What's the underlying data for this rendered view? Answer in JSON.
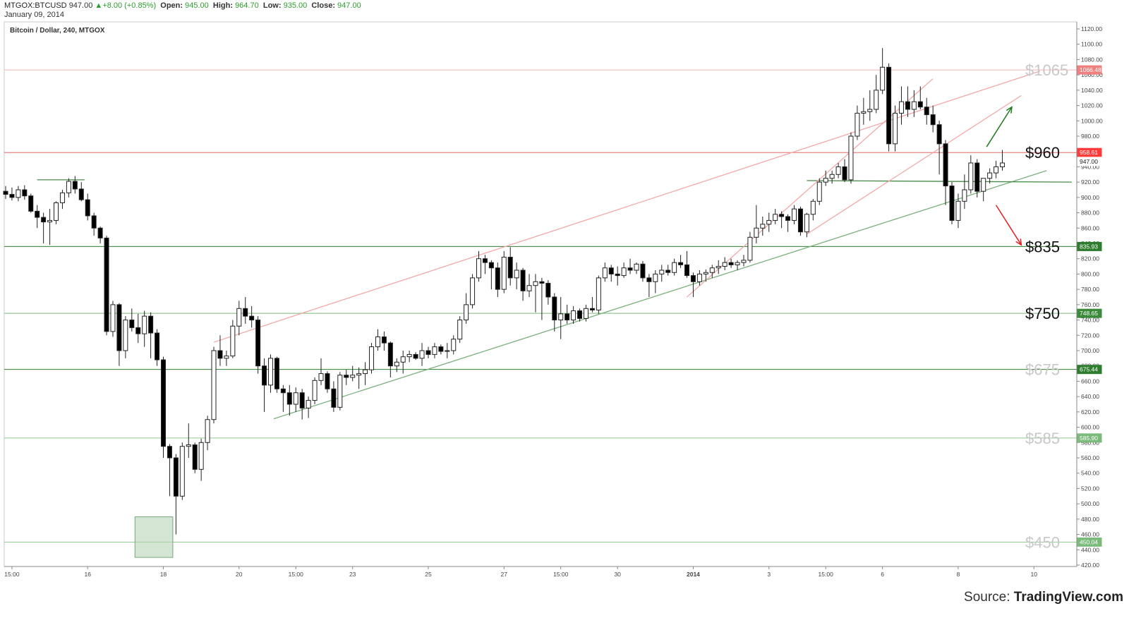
{
  "header": {
    "symbol": "MTGOX:BTCUSD",
    "last": "947.00",
    "change": "+8.00 (+0.85%)",
    "open_label": "Open:",
    "open": "945.00",
    "high_label": "High:",
    "high": "964.70",
    "low_label": "Low:",
    "low": "935.00",
    "close_label": "Close:",
    "close": "947.00",
    "date": "January 09, 2014"
  },
  "source": {
    "prefix": "Source: ",
    "brand": "TradingView.com"
  },
  "chart_data": {
    "type": "candlestick",
    "title": "Bitcoin / Dollar, 240, MTGOX",
    "ylim": [
      420,
      1120
    ],
    "y_ticks": [
      420,
      440,
      460,
      480,
      500,
      520,
      540,
      560,
      580,
      600,
      620,
      640,
      660,
      680,
      700,
      720,
      740,
      760,
      780,
      800,
      820,
      840,
      860,
      880,
      900,
      920,
      940,
      960,
      980,
      1000,
      1020,
      1040,
      1060,
      1080,
      1100,
      1120
    ],
    "x_tick_labels": [
      {
        "idx": 1,
        "label": "15:00"
      },
      {
        "idx": 13,
        "label": "16"
      },
      {
        "idx": 25,
        "label": "18"
      },
      {
        "idx": 37,
        "label": "20"
      },
      {
        "idx": 46,
        "label": "15:00"
      },
      {
        "idx": 55,
        "label": "23"
      },
      {
        "idx": 67,
        "label": "25"
      },
      {
        "idx": 79,
        "label": "27"
      },
      {
        "idx": 88,
        "label": "15:00"
      },
      {
        "idx": 97,
        "label": "30"
      },
      {
        "idx": 109,
        "label": "2014"
      },
      {
        "idx": 121,
        "label": "3"
      },
      {
        "idx": 130,
        "label": "15:00"
      },
      {
        "idx": 139,
        "label": "6"
      },
      {
        "idx": 151,
        "label": "8"
      },
      {
        "idx": 163,
        "label": "10"
      }
    ],
    "horizontal_levels": [
      {
        "price": 1066.48,
        "label": "1066.48",
        "color": "#f2b3b3",
        "tag": "#f08080",
        "annotation": "$1065",
        "ann_color": "#c8c8c8"
      },
      {
        "price": 958.61,
        "label": "958.61",
        "color": "#e86a6a",
        "tag": "#ff3b3b",
        "annotation": "$960",
        "ann_color": "#111111"
      },
      {
        "price": 835.93,
        "label": "835.93",
        "color": "#2e7d2e",
        "tag": "#2e7d2e",
        "annotation": "$835",
        "ann_color": "#111111"
      },
      {
        "price": 748.65,
        "label": "748.65",
        "color": "#7cb87c",
        "tag": "#3a8a3a",
        "annotation": "$750",
        "ann_color": "#111111"
      },
      {
        "price": 675.44,
        "label": "675.44",
        "color": "#2e7d2e",
        "tag": "#2e7d2e",
        "annotation": "$675",
        "ann_color": "#c8c8c8"
      },
      {
        "price": 585.9,
        "label": "585.90",
        "color": "#8fc98f",
        "tag": "#7aba7a",
        "annotation": "$585",
        "ann_color": "#c8c8c8"
      },
      {
        "price": 450.04,
        "label": "450.04",
        "color": "#8fc98f",
        "tag": "#7aba7a",
        "annotation": "$450",
        "ann_color": "#c8c8c8"
      }
    ],
    "last_price": {
      "price": 947.0,
      "label": "947.00"
    },
    "trendlines": [
      {
        "from": [
          42.5,
          611
        ],
        "to": [
          165,
          935
        ],
        "color": "#7ab07a"
      },
      {
        "from": [
          127,
          922
        ],
        "to": [
          169,
          920
        ],
        "color": "#4a8a4a"
      },
      {
        "from": [
          5,
          923
        ],
        "to": [
          12.5,
          923
        ],
        "color": "#4a8a4a"
      },
      {
        "from": [
          33,
          711
        ],
        "to": [
          164,
          1065
        ],
        "color": "#f2a8a8"
      },
      {
        "from": [
          108,
          770
        ],
        "to": [
          147,
          1055
        ],
        "color": "#f2a8a8"
      },
      {
        "from": [
          127,
          852
        ],
        "to": [
          161,
          1033
        ],
        "color": "#f2a8a8"
      }
    ],
    "arrows": [
      {
        "from": [
          155.5,
          966
        ],
        "to": [
          159.5,
          1018
        ],
        "color": "#1e7a1e"
      },
      {
        "from": [
          157,
          890
        ],
        "to": [
          161,
          838
        ],
        "color": "#e02020"
      }
    ],
    "highlight_box": {
      "x0": 20.5,
      "x1": 26.5,
      "y0": 430,
      "y1": 483
    },
    "candles": [
      [
        908,
        915,
        898,
        904
      ],
      [
        904,
        913,
        896,
        900
      ],
      [
        900,
        915,
        895,
        910
      ],
      [
        910,
        916,
        897,
        902
      ],
      [
        902,
        905,
        880,
        882
      ],
      [
        882,
        890,
        860,
        874
      ],
      [
        874,
        880,
        840,
        868
      ],
      [
        868,
        885,
        838,
        870
      ],
      [
        870,
        895,
        865,
        893
      ],
      [
        893,
        910,
        885,
        906
      ],
      [
        906,
        925,
        900,
        921
      ],
      [
        921,
        928,
        905,
        911
      ],
      [
        911,
        920,
        895,
        897
      ],
      [
        897,
        905,
        870,
        876
      ],
      [
        876,
        880,
        850,
        860
      ],
      [
        860,
        862,
        840,
        847
      ],
      [
        847,
        850,
        720,
        725
      ],
      [
        725,
        765,
        718,
        760
      ],
      [
        760,
        762,
        680,
        700
      ],
      [
        700,
        745,
        690,
        740
      ],
      [
        740,
        755,
        725,
        730
      ],
      [
        730,
        748,
        710,
        722
      ],
      [
        722,
        752,
        705,
        745
      ],
      [
        745,
        750,
        690,
        723
      ],
      [
        723,
        728,
        680,
        688
      ],
      [
        688,
        692,
        560,
        575
      ],
      [
        575,
        578,
        510,
        560
      ],
      [
        560,
        565,
        460,
        510
      ],
      [
        510,
        580,
        505,
        575
      ],
      [
        575,
        605,
        560,
        577
      ],
      [
        577,
        580,
        540,
        545
      ],
      [
        545,
        585,
        530,
        580
      ],
      [
        580,
        615,
        570,
        610
      ],
      [
        610,
        705,
        605,
        700
      ],
      [
        700,
        720,
        680,
        690
      ],
      [
        690,
        700,
        680,
        693
      ],
      [
        693,
        740,
        690,
        732
      ],
      [
        732,
        765,
        720,
        755
      ],
      [
        755,
        770,
        735,
        745
      ],
      [
        745,
        758,
        730,
        740
      ],
      [
        740,
        745,
        670,
        680
      ],
      [
        680,
        690,
        620,
        655
      ],
      [
        655,
        695,
        645,
        690
      ],
      [
        690,
        692,
        645,
        650
      ],
      [
        650,
        655,
        620,
        645
      ],
      [
        645,
        655,
        615,
        630
      ],
      [
        630,
        652,
        620,
        645
      ],
      [
        645,
        650,
        610,
        625
      ],
      [
        625,
        640,
        612,
        635
      ],
      [
        635,
        665,
        630,
        661
      ],
      [
        661,
        690,
        655,
        670
      ],
      [
        670,
        673,
        645,
        650
      ],
      [
        650,
        660,
        620,
        626
      ],
      [
        626,
        672,
        622,
        668
      ],
      [
        668,
        675,
        655,
        665
      ],
      [
        665,
        680,
        660,
        668
      ],
      [
        668,
        678,
        650,
        670
      ],
      [
        670,
        685,
        655,
        675
      ],
      [
        675,
        710,
        670,
        705
      ],
      [
        705,
        728,
        700,
        718
      ],
      [
        718,
        725,
        700,
        710
      ],
      [
        710,
        712,
        665,
        680
      ],
      [
        680,
        690,
        672,
        685
      ],
      [
        685,
        700,
        670,
        692
      ],
      [
        692,
        700,
        685,
        695
      ],
      [
        695,
        698,
        688,
        690
      ],
      [
        690,
        710,
        680,
        700
      ],
      [
        700,
        705,
        690,
        695
      ],
      [
        695,
        710,
        690,
        705
      ],
      [
        705,
        708,
        695,
        699
      ],
      [
        699,
        710,
        690,
        700
      ],
      [
        700,
        720,
        695,
        715
      ],
      [
        715,
        745,
        710,
        740
      ],
      [
        740,
        775,
        735,
        760
      ],
      [
        760,
        800,
        755,
        795
      ],
      [
        795,
        830,
        790,
        820
      ],
      [
        820,
        825,
        800,
        815
      ],
      [
        815,
        818,
        780,
        808
      ],
      [
        808,
        815,
        770,
        780
      ],
      [
        780,
        830,
        775,
        822
      ],
      [
        822,
        835,
        785,
        795
      ],
      [
        795,
        815,
        780,
        805
      ],
      [
        805,
        808,
        765,
        778
      ],
      [
        778,
        800,
        770,
        785
      ],
      [
        785,
        800,
        750,
        790
      ],
      [
        790,
        795,
        740,
        788
      ],
      [
        788,
        792,
        760,
        770
      ],
      [
        770,
        775,
        725,
        740
      ],
      [
        740,
        770,
        715,
        748
      ],
      [
        748,
        760,
        735,
        740
      ],
      [
        740,
        758,
        735,
        752
      ],
      [
        752,
        755,
        738,
        742
      ],
      [
        742,
        760,
        738,
        755
      ],
      [
        755,
        770,
        750,
        753
      ],
      [
        753,
        798,
        748,
        795
      ],
      [
        795,
        815,
        790,
        808
      ],
      [
        808,
        812,
        790,
        800
      ],
      [
        800,
        810,
        785,
        798
      ],
      [
        798,
        815,
        795,
        808
      ],
      [
        808,
        820,
        800,
        805
      ],
      [
        805,
        815,
        800,
        813
      ],
      [
        813,
        817,
        790,
        795
      ],
      [
        795,
        800,
        770,
        790
      ],
      [
        790,
        805,
        775,
        800
      ],
      [
        800,
        812,
        790,
        805
      ],
      [
        805,
        812,
        798,
        802
      ],
      [
        802,
        820,
        798,
        815
      ],
      [
        815,
        825,
        808,
        812
      ],
      [
        812,
        830,
        795,
        798
      ],
      [
        798,
        802,
        770,
        790
      ],
      [
        790,
        805,
        785,
        800
      ],
      [
        800,
        806,
        790,
        802
      ],
      [
        802,
        812,
        795,
        808
      ],
      [
        808,
        818,
        800,
        810
      ],
      [
        810,
        822,
        805,
        815
      ],
      [
        815,
        820,
        808,
        812
      ],
      [
        812,
        818,
        805,
        815
      ],
      [
        815,
        825,
        810,
        818
      ],
      [
        818,
        855,
        815,
        848
      ],
      [
        848,
        890,
        840,
        860
      ],
      [
        860,
        875,
        850,
        865
      ],
      [
        865,
        880,
        855,
        870
      ],
      [
        870,
        885,
        865,
        878
      ],
      [
        878,
        882,
        860,
        875
      ],
      [
        875,
        878,
        855,
        870
      ],
      [
        870,
        890,
        865,
        885
      ],
      [
        885,
        888,
        850,
        855
      ],
      [
        855,
        880,
        848,
        878
      ],
      [
        878,
        898,
        870,
        895
      ],
      [
        895,
        925,
        890,
        920
      ],
      [
        920,
        935,
        915,
        925
      ],
      [
        925,
        935,
        918,
        930
      ],
      [
        930,
        945,
        925,
        940
      ],
      [
        940,
        950,
        920,
        923
      ],
      [
        923,
        985,
        918,
        980
      ],
      [
        980,
        1020,
        975,
        1010
      ],
      [
        1010,
        1030,
        995,
        1012
      ],
      [
        1012,
        1040,
        1000,
        1015
      ],
      [
        1015,
        1060,
        1010,
        1040
      ],
      [
        1040,
        1095,
        1035,
        1070
      ],
      [
        1070,
        1075,
        960,
        970
      ],
      [
        970,
        1020,
        960,
        1010
      ],
      [
        1010,
        1045,
        995,
        1025
      ],
      [
        1025,
        1045,
        1005,
        1015
      ],
      [
        1015,
        1040,
        1005,
        1025
      ],
      [
        1025,
        1045,
        1015,
        1018
      ],
      [
        1018,
        1030,
        995,
        1008
      ],
      [
        1008,
        1020,
        985,
        995
      ],
      [
        995,
        1000,
        930,
        970
      ],
      [
        970,
        975,
        890,
        915
      ],
      [
        915,
        920,
        865,
        870
      ],
      [
        870,
        905,
        860,
        895
      ],
      [
        895,
        930,
        885,
        910
      ],
      [
        910,
        955,
        905,
        945
      ],
      [
        945,
        950,
        900,
        908
      ],
      [
        908,
        925,
        895,
        925
      ],
      [
        925,
        938,
        918,
        932
      ],
      [
        932,
        948,
        925,
        940
      ],
      [
        940,
        962,
        935,
        945
      ]
    ]
  }
}
